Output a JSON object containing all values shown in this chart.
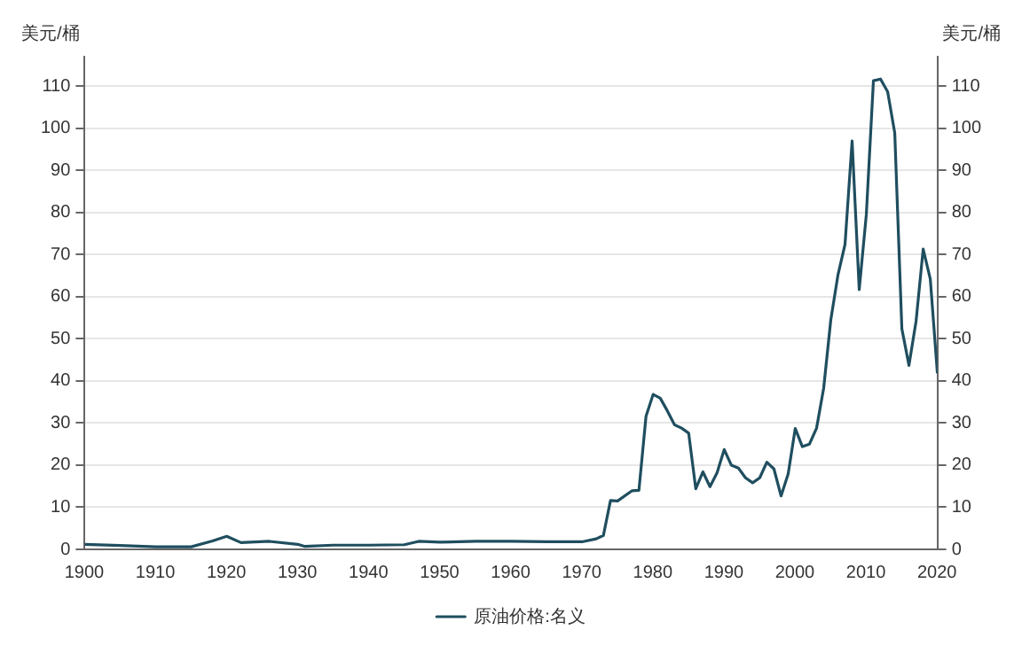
{
  "chart_data": {
    "type": "line",
    "x": [
      1900,
      1905,
      1910,
      1915,
      1918,
      1920,
      1922,
      1926,
      1930,
      1931,
      1935,
      1940,
      1945,
      1947,
      1950,
      1955,
      1960,
      1965,
      1970,
      1972,
      1973,
      1974,
      1975,
      1977,
      1978,
      1979,
      1980,
      1981,
      1982,
      1983,
      1984,
      1985,
      1986,
      1987,
      1988,
      1989,
      1990,
      1991,
      1992,
      1993,
      1994,
      1995,
      1996,
      1997,
      1998,
      1999,
      2000,
      2001,
      2002,
      2003,
      2004,
      2005,
      2006,
      2007,
      2008,
      2009,
      2010,
      2011,
      2012,
      2013,
      2014,
      2015,
      2016,
      2017,
      2018,
      2019,
      2020
    ],
    "series": [
      {
        "name": "原油价格:名义",
        "color": "#1f4e5f",
        "values": [
          1.2,
          0.9,
          0.6,
          0.6,
          2.0,
          3.1,
          1.6,
          1.9,
          1.2,
          0.7,
          1.0,
          1.0,
          1.1,
          1.9,
          1.7,
          1.9,
          1.9,
          1.8,
          1.8,
          2.5,
          3.3,
          11.6,
          11.5,
          13.9,
          14.0,
          31.6,
          36.8,
          35.9,
          32.9,
          29.6,
          28.8,
          27.6,
          14.4,
          18.4,
          14.9,
          18.2,
          23.7,
          20.0,
          19.3,
          17.0,
          15.8,
          17.0,
          20.7,
          19.1,
          12.7,
          17.9,
          28.7,
          24.4,
          25.0,
          28.8,
          38.3,
          54.5,
          65.1,
          72.4,
          97.0,
          61.7,
          79.5,
          111.3,
          111.7,
          108.7,
          98.9,
          52.4,
          43.7,
          54.2,
          71.3,
          64.2,
          41.8
        ]
      }
    ],
    "ylabel": "美元/桶",
    "y2label": "美元/桶",
    "xlim": [
      1900,
      2020
    ],
    "xticks": [
      1900,
      1910,
      1920,
      1930,
      1940,
      1950,
      1960,
      1970,
      1980,
      1990,
      2000,
      2010,
      2020
    ],
    "ylim": [
      0,
      117
    ],
    "yticks": [
      0,
      10,
      20,
      30,
      40,
      50,
      60,
      70,
      80,
      90,
      100,
      110
    ],
    "y2lim": [
      0,
      117
    ],
    "y2ticks": [
      0,
      10,
      20,
      30,
      40,
      50,
      60,
      70,
      80,
      90,
      100,
      110
    ],
    "grid": "y",
    "legend": "bottom",
    "marker": "none",
    "line_style": "solid"
  }
}
